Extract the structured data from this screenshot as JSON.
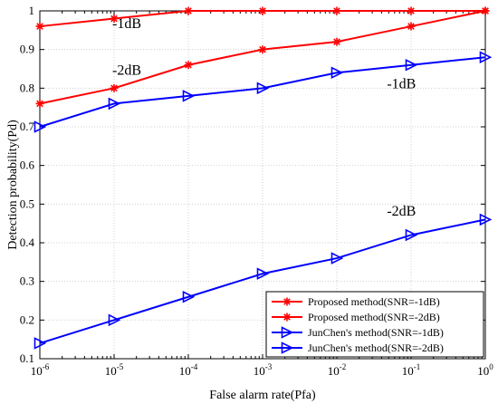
{
  "chart_data": {
    "type": "line",
    "title": "",
    "xlabel": "False alarm rate(Pfa)",
    "ylabel": "Detection probability(Pd)",
    "x_scale": "log",
    "x": [
      1e-06,
      1e-05,
      0.0001,
      0.001,
      0.01,
      0.1,
      1
    ],
    "x_tick_labels": [
      {
        "base": "10",
        "exp": "-6"
      },
      {
        "base": "10",
        "exp": "-5"
      },
      {
        "base": "10",
        "exp": "-4"
      },
      {
        "base": "10",
        "exp": "-3"
      },
      {
        "base": "10",
        "exp": "-2"
      },
      {
        "base": "10",
        "exp": "-1"
      },
      {
        "base": "10",
        "exp": "0"
      }
    ],
    "ylim": [
      0.1,
      1
    ],
    "y_ticks": [
      "0.1",
      "0.2",
      "0.3",
      "0.4",
      "0.5",
      "0.6",
      "0.7",
      "0.8",
      "0.9",
      "1"
    ],
    "grid": true,
    "legend_position": "bottom-right",
    "series": [
      {
        "name": "Proposed method(SNR=-1dB)",
        "color": "#ff0000",
        "marker": "asterisk",
        "values": [
          0.96,
          0.98,
          1.0,
          1.0,
          1.0,
          1.0,
          1.0
        ]
      },
      {
        "name": "Proposed method(SNR=-2dB)",
        "color": "#ff0000",
        "marker": "asterisk",
        "values": [
          0.76,
          0.8,
          0.86,
          0.9,
          0.92,
          0.96,
          1.0
        ]
      },
      {
        "name": "JunChen's method(SNR=-1dB)",
        "color": "#0000ff",
        "marker": "triangle-right",
        "values": [
          0.7,
          0.76,
          0.78,
          0.8,
          0.84,
          0.86,
          0.88
        ]
      },
      {
        "name": "JunChen's method(SNR=-2dB)",
        "color": "#0000ff",
        "marker": "triangle-right",
        "values": [
          0.14,
          0.2,
          0.26,
          0.32,
          0.36,
          0.42,
          0.46
        ]
      }
    ],
    "annotations": [
      {
        "text": "-1dB",
        "x": 1e-05,
        "y": 0.955
      },
      {
        "text": "-2dB",
        "x": 1e-05,
        "y": 0.835
      },
      {
        "text": "-1dB",
        "x": 0.05,
        "y": 0.8
      },
      {
        "text": "-2dB",
        "x": 0.05,
        "y": 0.47
      }
    ]
  }
}
